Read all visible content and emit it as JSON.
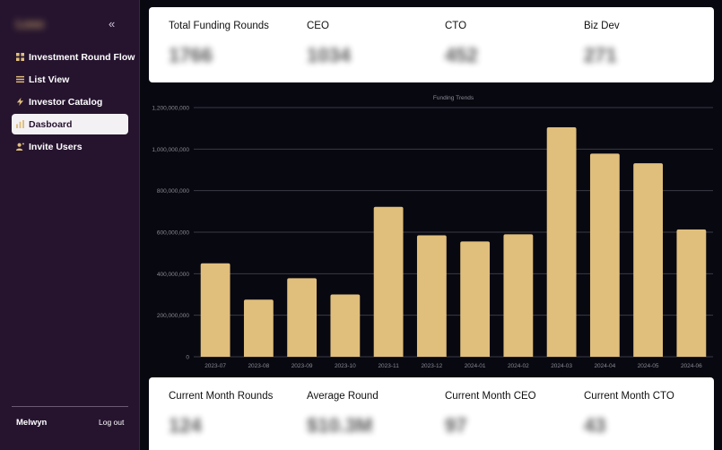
{
  "sidebar": {
    "logo_text": "Loxo",
    "collapse_glyph": "«",
    "items": [
      {
        "label": "Investment Round Flow",
        "icon": "grid-icon",
        "active": false
      },
      {
        "label": "List View",
        "icon": "list-icon",
        "active": false
      },
      {
        "label": "Investor Catalog",
        "icon": "bolt-icon",
        "active": false
      },
      {
        "label": "Dasboard",
        "icon": "bar-chart-icon",
        "active": true
      },
      {
        "label": "Invite Users",
        "icon": "user-add-icon",
        "active": false
      }
    ],
    "user_name": "Melwyn",
    "logout_label": "Log out"
  },
  "top_stats": [
    {
      "label": "Total Funding Rounds",
      "value": "1766"
    },
    {
      "label": "CEO",
      "value": "1034"
    },
    {
      "label": "CTO",
      "value": "452"
    },
    {
      "label": "Biz Dev",
      "value": "271"
    }
  ],
  "bottom_stats": [
    {
      "label": "Current Month Rounds",
      "value": "124"
    },
    {
      "label": "Average Round",
      "value": "$10.3M"
    },
    {
      "label": "Current Month CEO",
      "value": "97"
    },
    {
      "label": "Current Month CTO",
      "value": "43"
    }
  ],
  "chart_data": {
    "type": "bar",
    "title": "Funding Trends",
    "categories": [
      "2023-07",
      "2023-08",
      "2023-09",
      "2023-10",
      "2023-11",
      "2023-12",
      "2024-01",
      "2024-02",
      "2024-03",
      "2024-04",
      "2024-05",
      "2024-06"
    ],
    "values": [
      450000000,
      275000000,
      378000000,
      300000000,
      722000000,
      585000000,
      555000000,
      590000000,
      1105000000,
      978000000,
      932000000,
      613000000
    ],
    "ylim": [
      0,
      1200000000
    ],
    "yticks": [
      "0",
      "200,000,000",
      "400,000,000",
      "600,000,000",
      "800,000,000",
      "1,000,000,000",
      "1,200,000,000"
    ],
    "grid": true,
    "bar_color": "#e0bf7c",
    "grid_color": "#3a3a46",
    "label_color": "#8a8a94"
  }
}
